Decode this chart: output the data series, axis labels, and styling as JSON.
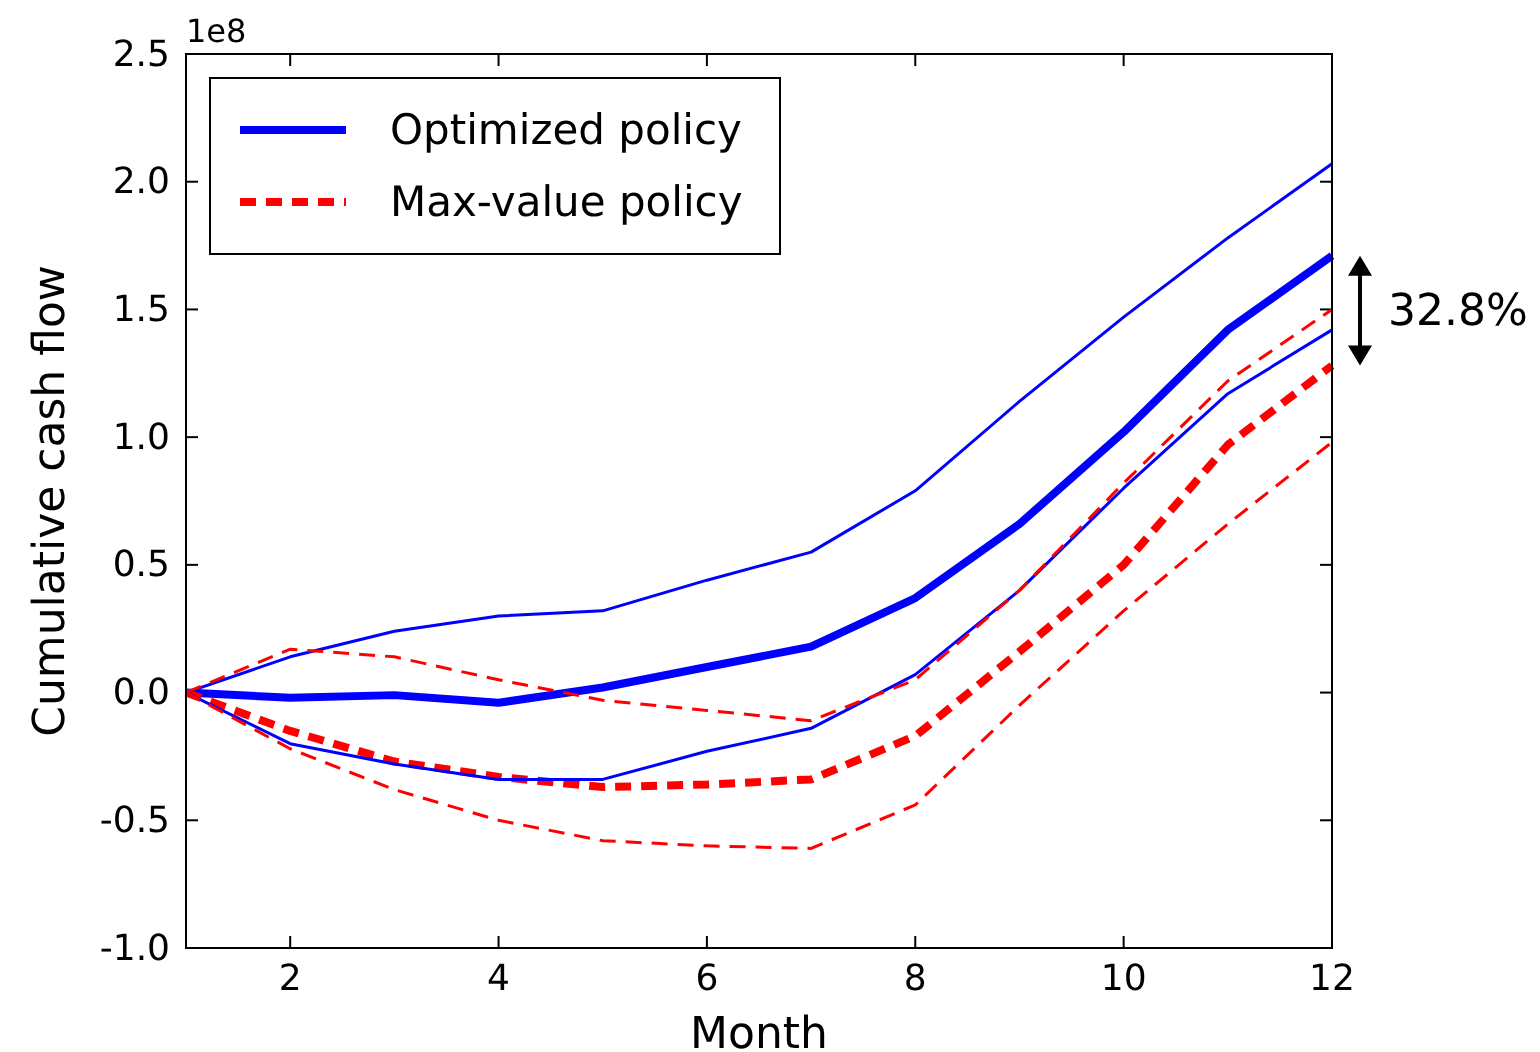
{
  "chart_data": {
    "type": "line",
    "xlabel": "Month",
    "ylabel": "Cumulative cash flow",
    "x": [
      1,
      2,
      3,
      4,
      5,
      6,
      7,
      8,
      9,
      10,
      11,
      12
    ],
    "xlim": [
      1,
      12
    ],
    "xticks": [
      2,
      4,
      6,
      8,
      10,
      12
    ],
    "ylim": [
      -1,
      2.5
    ],
    "yticks": [
      {
        "value": -1,
        "label": "-1.0"
      },
      {
        "value": -0.5,
        "label": "-0.5"
      },
      {
        "value": 0,
        "label": "0.0"
      },
      {
        "value": 0.5,
        "label": "0.5"
      },
      {
        "value": 1,
        "label": "1.0"
      },
      {
        "value": 1.5,
        "label": "1.5"
      },
      {
        "value": 2,
        "label": "2.0"
      },
      {
        "value": 2.5,
        "label": "2.5"
      }
    ],
    "series": [
      {
        "name": "Optimized policy",
        "color": "#0000ff",
        "line_style": "solid",
        "values": [
          0,
          -0.02,
          -0.01,
          -0.04,
          0.02,
          0.1,
          0.18,
          0.37,
          0.66,
          1.02,
          1.42,
          1.71
        ]
      },
      {
        "name": "Max-value policy",
        "color": "#ff0000",
        "line_style": "dashed",
        "values": [
          0,
          -0.15,
          -0.27,
          -0.33,
          -0.37,
          -0.36,
          -0.34,
          -0.17,
          0.16,
          0.5,
          0.97,
          1.28
        ]
      },
      {
        "color": "#0000ff",
        "line_style": "solid",
        "values": [
          0,
          0.14,
          0.24,
          0.3,
          0.32,
          0.44,
          0.55,
          0.79,
          1.14,
          1.47,
          1.78,
          2.07
        ]
      },
      {
        "color": "#0000ff",
        "line_style": "solid",
        "values": [
          0,
          -0.2,
          -0.28,
          -0.34,
          -0.34,
          -0.23,
          -0.14,
          0.07,
          0.4,
          0.8,
          1.17,
          1.42
        ]
      },
      {
        "color": "#ff0000",
        "line_style": "dashed",
        "values": [
          0,
          0.17,
          0.14,
          0.05,
          -0.03,
          -0.07,
          -0.11,
          0.05,
          0.4,
          0.82,
          1.22,
          1.5
        ]
      },
      {
        "color": "#ff0000",
        "line_style": "dashed",
        "values": [
          0,
          -0.22,
          -0.38,
          -0.5,
          -0.58,
          -0.6,
          -0.61,
          -0.44,
          -0.05,
          0.32,
          0.66,
          0.98
        ]
      }
    ],
    "legend": "top left",
    "grid": false,
    "annotations": [
      "1e8",
      {
        "text": "32.8%",
        "x": 12,
        "y": 1.5
      }
    ]
  }
}
